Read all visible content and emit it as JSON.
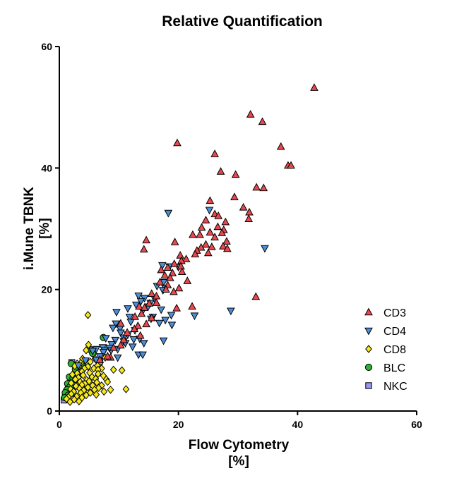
{
  "chart_data": {
    "type": "scatter",
    "title": "Relative Quantification",
    "xlabel": [
      "Flow Cytometry",
      "[%]"
    ],
    "ylabel": [
      "i.Mune TBNK",
      "[%]"
    ],
    "xlim": [
      0,
      60
    ],
    "ylim": [
      0,
      60
    ],
    "xticks": [
      0,
      20,
      40,
      60
    ],
    "yticks": [
      0,
      20,
      40,
      60
    ],
    "grid": false,
    "legend_position": "right",
    "series": [
      {
        "name": "CD3",
        "marker": "triangle-up",
        "color": "#e8494f",
        "points": [
          [
            42.8,
            53.2
          ],
          [
            32.1,
            48.8
          ],
          [
            34.1,
            47.6
          ],
          [
            19.8,
            44.1
          ],
          [
            37.2,
            43.5
          ],
          [
            26.1,
            42.3
          ],
          [
            38.4,
            40.4
          ],
          [
            38.9,
            40.4
          ],
          [
            27.1,
            39.4
          ],
          [
            29.6,
            38.9
          ],
          [
            33.1,
            36.8
          ],
          [
            34.3,
            36.7
          ],
          [
            29.4,
            35.2
          ],
          [
            25.3,
            34.6
          ],
          [
            30.9,
            33.5
          ],
          [
            31.9,
            32.7
          ],
          [
            26.1,
            32.4
          ],
          [
            26.7,
            32.1
          ],
          [
            31.8,
            31.6
          ],
          [
            24.6,
            31.4
          ],
          [
            27.9,
            31.1
          ],
          [
            26.6,
            30.3
          ],
          [
            23.9,
            30.2
          ],
          [
            27.6,
            29.8
          ],
          [
            25.3,
            29.4
          ],
          [
            27.3,
            29.3
          ],
          [
            23.6,
            29.0
          ],
          [
            22.4,
            29.0
          ],
          [
            26.1,
            28.6
          ],
          [
            14.6,
            28.1
          ],
          [
            28.1,
            27.9
          ],
          [
            27.5,
            27.1
          ],
          [
            19.4,
            27.8
          ],
          [
            24.6,
            27.4
          ],
          [
            25.6,
            27.0
          ],
          [
            23.8,
            26.9
          ],
          [
            14.2,
            26.6
          ],
          [
            23.1,
            26.4
          ],
          [
            28.2,
            26.7
          ],
          [
            25.0,
            26.0
          ],
          [
            20.3,
            25.6
          ],
          [
            22.8,
            25.8
          ],
          [
            21.3,
            25.0
          ],
          [
            20.5,
            24.7
          ],
          [
            19.3,
            24.2
          ],
          [
            20.4,
            23.8
          ],
          [
            18.2,
            23.6
          ],
          [
            17.1,
            23.2
          ],
          [
            19.0,
            22.7
          ],
          [
            20.6,
            22.9
          ],
          [
            17.7,
            22.3
          ],
          [
            18.6,
            21.9
          ],
          [
            21.5,
            21.4
          ],
          [
            16.9,
            21.2
          ],
          [
            18.2,
            20.7
          ],
          [
            17.9,
            20.0
          ],
          [
            20.1,
            20.2
          ],
          [
            19.2,
            19.6
          ],
          [
            15.5,
            19.3
          ],
          [
            16.3,
            18.9
          ],
          [
            16.3,
            17.8
          ],
          [
            15.1,
            17.7
          ],
          [
            13.4,
            17.2
          ],
          [
            14.3,
            17.0
          ],
          [
            33.0,
            18.8
          ],
          [
            22.3,
            17.2
          ],
          [
            19.7,
            16.9
          ],
          [
            13.8,
            16.0
          ],
          [
            12.7,
            15.5
          ],
          [
            15.5,
            15.3
          ],
          [
            14.6,
            14.3
          ],
          [
            13.2,
            14.0
          ],
          [
            10.3,
            14.4
          ],
          [
            12.6,
            13.5
          ],
          [
            11.4,
            12.9
          ],
          [
            13.6,
            12.4
          ],
          [
            10.8,
            11.7
          ],
          [
            10.3,
            10.8
          ],
          [
            9.1,
            10.4
          ],
          [
            8.6,
            8.8
          ],
          [
            8.1,
            9.0
          ],
          [
            6.8,
            8.4
          ]
        ]
      },
      {
        "name": "CD4",
        "marker": "triangle-down",
        "color": "#4d8fd6",
        "points": [
          [
            18.3,
            32.6
          ],
          [
            25.2,
            33.1
          ],
          [
            34.5,
            26.8
          ],
          [
            17.3,
            24.0
          ],
          [
            18.5,
            23.8
          ],
          [
            20.0,
            23.7
          ],
          [
            17.5,
            21.2
          ],
          [
            16.4,
            20.6
          ],
          [
            17.8,
            20.2
          ],
          [
            17.4,
            19.9
          ],
          [
            13.3,
            19.0
          ],
          [
            14.3,
            18.6
          ],
          [
            16.0,
            18.5
          ],
          [
            13.7,
            18.1
          ],
          [
            15.3,
            17.8
          ],
          [
            12.9,
            17.5
          ],
          [
            14.9,
            17.2
          ],
          [
            11.5,
            16.9
          ],
          [
            28.8,
            16.5
          ],
          [
            17.1,
            16.7
          ],
          [
            14.0,
            16.5
          ],
          [
            9.6,
            16.3
          ],
          [
            18.8,
            15.8
          ],
          [
            15.7,
            15.5
          ],
          [
            11.8,
            15.5
          ],
          [
            22.7,
            15.7
          ],
          [
            15.4,
            15.2
          ],
          [
            12.0,
            14.7
          ],
          [
            16.8,
            14.5
          ],
          [
            17.8,
            15.0
          ],
          [
            9.5,
            14.4
          ],
          [
            9.0,
            13.7
          ],
          [
            18.9,
            14.2
          ],
          [
            10.2,
            13.6
          ],
          [
            12.7,
            13.3
          ],
          [
            10.3,
            12.9
          ],
          [
            11.5,
            12.6
          ],
          [
            7.8,
            12.0
          ],
          [
            10.8,
            12.1
          ],
          [
            9.4,
            11.7
          ],
          [
            12.5,
            11.8
          ],
          [
            10.8,
            11.5
          ],
          [
            13.5,
            11.9
          ],
          [
            11.1,
            11.2
          ],
          [
            8.8,
            11.0
          ],
          [
            14.2,
            11.2
          ],
          [
            8.4,
            10.4
          ],
          [
            7.3,
            10.5
          ],
          [
            9.8,
            10.2
          ],
          [
            7.6,
            10.0
          ],
          [
            6.2,
            10.2
          ],
          [
            8.7,
            10.0
          ],
          [
            17.5,
            11.6
          ],
          [
            12.3,
            10.6
          ],
          [
            5.6,
            9.9
          ],
          [
            7.4,
            9.7
          ],
          [
            13.3,
            9.3
          ],
          [
            6.8,
            9.0
          ],
          [
            9.8,
            8.8
          ],
          [
            4.4,
            8.3
          ],
          [
            6.2,
            8.4
          ],
          [
            14.0,
            9.3
          ],
          [
            3.2,
            7.5
          ]
        ]
      },
      {
        "name": "CD8",
        "marker": "diamond",
        "color": "#f7ea1a",
        "points": [
          [
            4.8,
            15.8
          ],
          [
            4.9,
            10.9
          ],
          [
            4.5,
            10.0
          ],
          [
            6.0,
            8.6
          ],
          [
            7.7,
            8.8
          ],
          [
            3.9,
            8.6
          ],
          [
            5.2,
            8.1
          ],
          [
            3.6,
            7.9
          ],
          [
            3.0,
            7.8
          ],
          [
            6.4,
            7.5
          ],
          [
            4.8,
            7.3
          ],
          [
            3.3,
            7.4
          ],
          [
            2.6,
            7.4
          ],
          [
            4.2,
            7.0
          ],
          [
            7.1,
            7.0
          ],
          [
            5.8,
            7.0
          ],
          [
            6.5,
            6.8
          ],
          [
            9.1,
            6.8
          ],
          [
            10.5,
            6.7
          ],
          [
            3.8,
            6.5
          ],
          [
            5.1,
            6.3
          ],
          [
            3.0,
            6.2
          ],
          [
            6.5,
            6.1
          ],
          [
            2.2,
            6.0
          ],
          [
            4.0,
            5.9
          ],
          [
            7.4,
            5.8
          ],
          [
            5.5,
            5.6
          ],
          [
            3.2,
            5.5
          ],
          [
            6.1,
            5.3
          ],
          [
            2.7,
            5.2
          ],
          [
            4.6,
            5.1
          ],
          [
            7.9,
            5.2
          ],
          [
            5.0,
            4.9
          ],
          [
            3.5,
            4.8
          ],
          [
            6.3,
            4.7
          ],
          [
            2.0,
            4.6
          ],
          [
            8.1,
            4.8
          ],
          [
            4.3,
            4.5
          ],
          [
            3.8,
            4.3
          ],
          [
            5.6,
            4.2
          ],
          [
            7.1,
            4.2
          ],
          [
            2.8,
            4.1
          ],
          [
            4.8,
            3.9
          ],
          [
            6.6,
            3.8
          ],
          [
            3.4,
            3.7
          ],
          [
            1.9,
            3.6
          ],
          [
            11.2,
            3.6
          ],
          [
            5.9,
            3.5
          ],
          [
            4.1,
            3.4
          ],
          [
            8.6,
            3.5
          ],
          [
            2.4,
            3.2
          ],
          [
            3.6,
            3.0
          ],
          [
            7.5,
            3.2
          ],
          [
            5.2,
            3.0
          ],
          [
            2.0,
            2.8
          ],
          [
            6.2,
            2.7
          ],
          [
            4.5,
            2.6
          ],
          [
            2.9,
            2.4
          ],
          [
            3.8,
            2.2
          ],
          [
            1.5,
            2.3
          ],
          [
            1.2,
            2.0
          ],
          [
            2.5,
            1.9
          ],
          [
            3.3,
            1.6
          ],
          [
            1.8,
            1.5
          ]
        ]
      },
      {
        "name": "BLC",
        "marker": "circle",
        "color": "#2bb22e",
        "points": [
          [
            7.4,
            12.1
          ],
          [
            5.2,
            10.1
          ],
          [
            5.6,
            9.5
          ],
          [
            2.0,
            7.8
          ],
          [
            3.9,
            7.4
          ],
          [
            2.7,
            6.9
          ],
          [
            1.7,
            5.6
          ],
          [
            2.3,
            5.4
          ],
          [
            1.4,
            4.5
          ],
          [
            1.8,
            4.0
          ],
          [
            1.3,
            3.5
          ],
          [
            1.0,
            3.0
          ],
          [
            1.5,
            2.6
          ],
          [
            0.9,
            2.2
          ]
        ]
      },
      {
        "name": "NKC",
        "marker": "square",
        "color": "#9a95f0",
        "points": [
          [
            2.1,
            8.0
          ],
          [
            6.8,
            8.2
          ],
          [
            3.0,
            6.3
          ],
          [
            2.5,
            5.3
          ],
          [
            1.9,
            4.7
          ],
          [
            2.8,
            4.2
          ],
          [
            1.5,
            3.7
          ],
          [
            1.2,
            3.1
          ],
          [
            2.0,
            2.9
          ],
          [
            1.0,
            2.4
          ],
          [
            1.4,
            2.0
          ],
          [
            0.8,
            1.8
          ]
        ]
      }
    ]
  }
}
